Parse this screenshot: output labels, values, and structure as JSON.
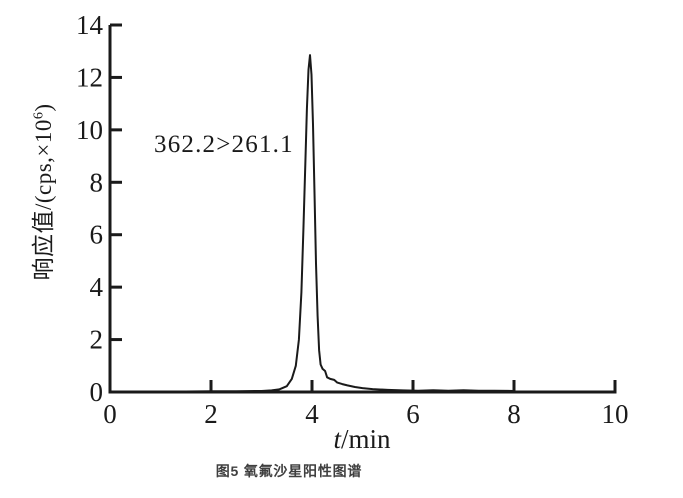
{
  "page": {
    "background_color": "#ffffff"
  },
  "figure": {
    "caption": "图5 氧氟沙星阳性图谱",
    "caption_color": "#3f3f3f"
  },
  "chart_data": {
    "type": "line",
    "title": "",
    "xlabel_italic": "t",
    "xlabel_rest": "/min",
    "ylabel_prefix": "响应值/(cps,×10",
    "ylabel_sup": "6",
    "ylabel_suffix": ")",
    "annotation": "362.2>261.1",
    "xlim": [
      0,
      10
    ],
    "ylim": [
      0,
      14
    ],
    "x_ticks": [
      0,
      2,
      4,
      6,
      8,
      10
    ],
    "y_ticks": [
      0,
      2,
      4,
      6,
      8,
      10,
      12,
      14
    ],
    "grid": false,
    "legend": false,
    "line_color": "#1a1a1a",
    "axis_color": "#1a1a1a",
    "peak": {
      "transition": "362.2>261.1",
      "retention_time_min": 3.96,
      "apex_height_cps_x1e6": 12.85
    },
    "series": [
      {
        "name": "ofloxacin-positive-chromatogram",
        "points": [
          [
            0,
            0.02
          ],
          [
            0.5,
            0.02
          ],
          [
            1,
            0.02
          ],
          [
            1.5,
            0.02
          ],
          [
            2,
            0.03
          ],
          [
            2.5,
            0.03
          ],
          [
            3,
            0.04
          ],
          [
            3.2,
            0.06
          ],
          [
            3.35,
            0.1
          ],
          [
            3.5,
            0.22
          ],
          [
            3.6,
            0.5
          ],
          [
            3.68,
            1.0
          ],
          [
            3.74,
            2.0
          ],
          [
            3.79,
            3.8
          ],
          [
            3.83,
            6.2
          ],
          [
            3.87,
            8.8
          ],
          [
            3.9,
            10.8
          ],
          [
            3.93,
            12.3
          ],
          [
            3.96,
            12.85
          ],
          [
            3.99,
            12.1
          ],
          [
            4.02,
            10.2
          ],
          [
            4.05,
            7.6
          ],
          [
            4.08,
            4.9
          ],
          [
            4.11,
            2.9
          ],
          [
            4.14,
            1.6
          ],
          [
            4.17,
            1.05
          ],
          [
            4.21,
            0.88
          ],
          [
            4.26,
            0.8
          ],
          [
            4.3,
            0.56
          ],
          [
            4.36,
            0.5
          ],
          [
            4.44,
            0.46
          ],
          [
            4.5,
            0.36
          ],
          [
            4.6,
            0.3
          ],
          [
            4.7,
            0.25
          ],
          [
            4.85,
            0.19
          ],
          [
            5.0,
            0.15
          ],
          [
            5.2,
            0.11
          ],
          [
            5.5,
            0.08
          ],
          [
            5.8,
            0.06
          ],
          [
            6.1,
            0.05
          ],
          [
            6.4,
            0.07
          ],
          [
            6.7,
            0.05
          ],
          [
            7.0,
            0.07
          ],
          [
            7.3,
            0.05
          ],
          [
            7.6,
            0.05
          ],
          [
            8.0,
            0.04
          ]
        ]
      }
    ]
  }
}
